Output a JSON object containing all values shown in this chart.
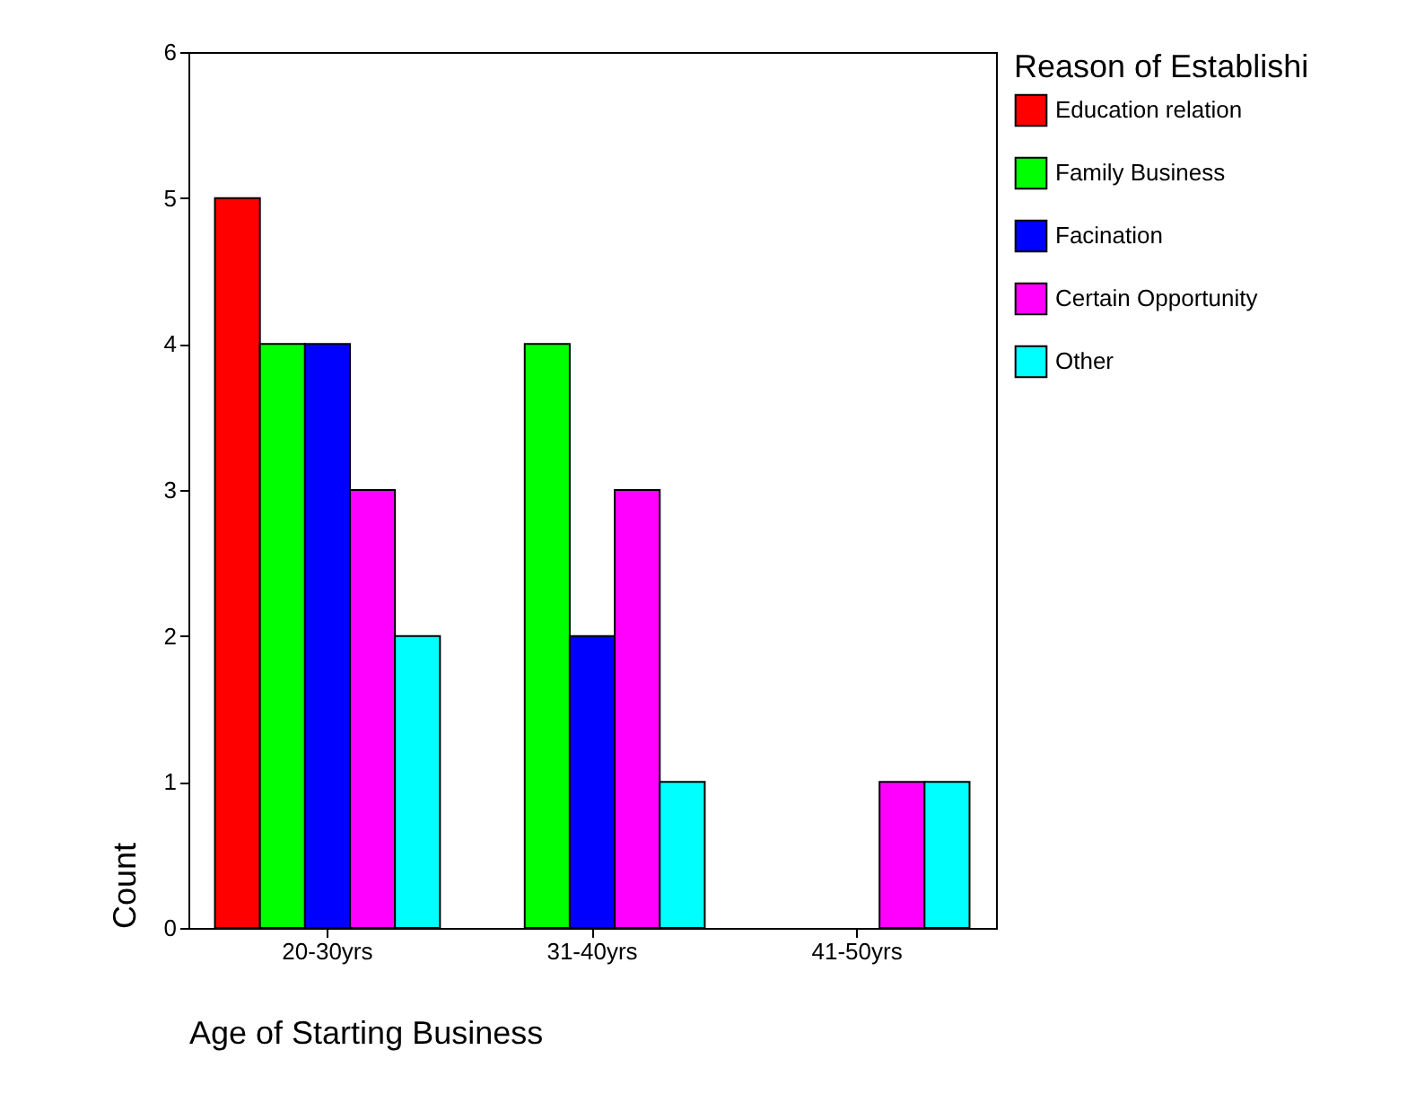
{
  "chart_data": {
    "type": "bar",
    "xlabel": "Age of Starting Business",
    "ylabel": "Count",
    "legend_title": "Reason of Establishi",
    "categories": [
      "20-30yrs",
      "31-40yrs",
      "41-50yrs"
    ],
    "series": [
      {
        "name": "Education relation",
        "color": "#ff0000",
        "values": [
          5,
          null,
          null
        ]
      },
      {
        "name": "Family Business",
        "color": "#00ff00",
        "values": [
          4,
          4,
          null
        ]
      },
      {
        "name": "Facination",
        "color": "#0000ff",
        "values": [
          4,
          2,
          null
        ]
      },
      {
        "name": "Certain Opportunity",
        "color": "#ff00ff",
        "values": [
          3,
          3,
          1
        ]
      },
      {
        "name": "Other",
        "color": "#00ffff",
        "values": [
          2,
          1,
          1
        ]
      }
    ],
    "ylim": [
      0,
      6
    ],
    "yticks": [
      0,
      1,
      2,
      3,
      4,
      5,
      6
    ],
    "grid": false,
    "legend": "right"
  }
}
